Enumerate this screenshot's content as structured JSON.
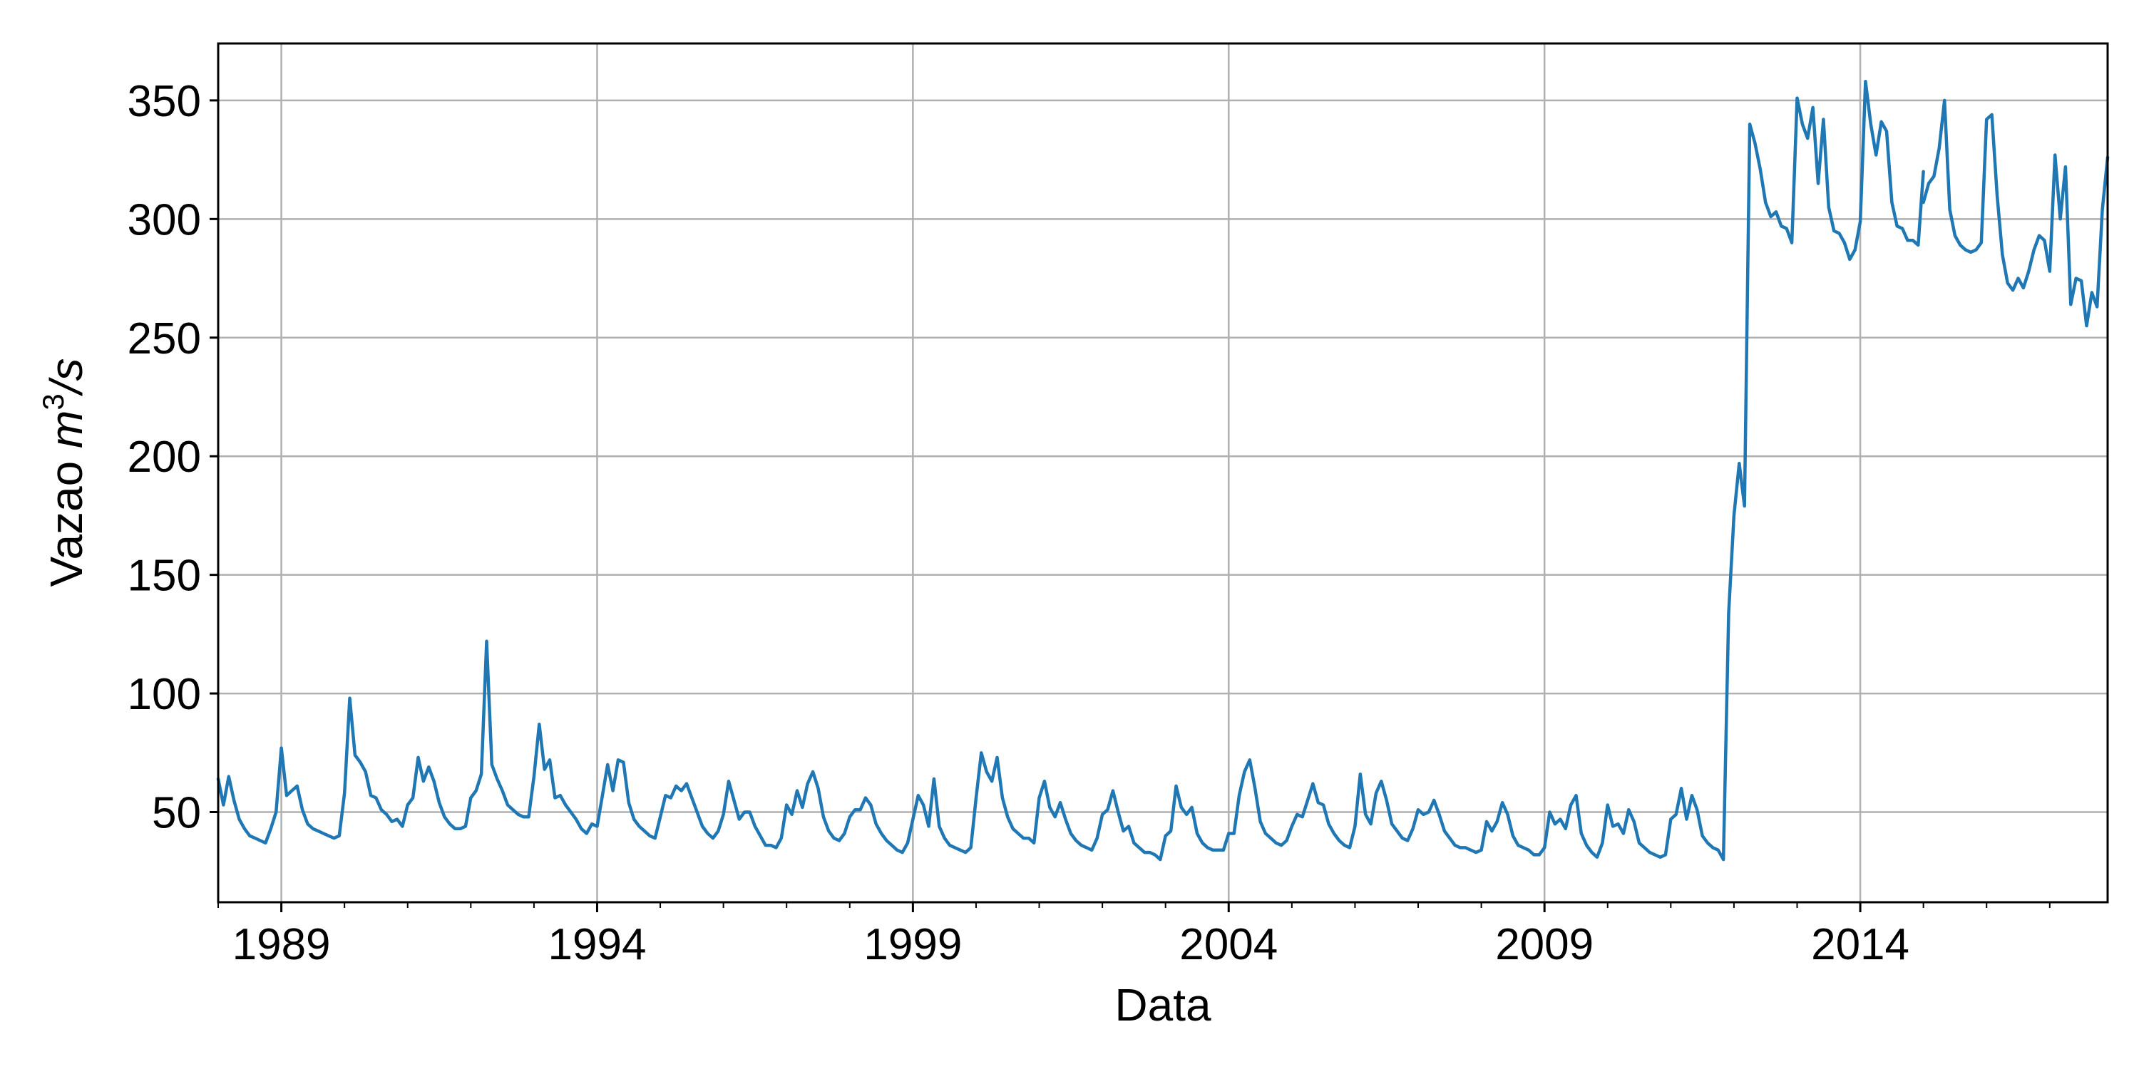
{
  "chart_data": {
    "type": "line",
    "title": "",
    "xlabel": "Data",
    "ylabel": "Vazao m³/s",
    "ylabel_parts": {
      "text": "Vazao ",
      "unit": "m",
      "sup": "3",
      "tail": "/s"
    },
    "x_range": [
      "1988-01",
      "2017-12"
    ],
    "ylim": [
      12,
      374
    ],
    "x_ticks": [
      "1989",
      "1994",
      "1999",
      "2004",
      "2009",
      "2014"
    ],
    "y_ticks": [
      50,
      100,
      150,
      200,
      250,
      300,
      350
    ],
    "grid": true,
    "line_color": "#1f77b4",
    "series": [
      {
        "segments": [
          {
            "start": "1988-01",
            "values": [
              64,
              53,
              65,
              55,
              47,
              43,
              40,
              39,
              38,
              37,
              43,
              50,
              77,
              57,
              59,
              61,
              51,
              45,
              43,
              42,
              41,
              40,
              39,
              40,
              58,
              98,
              74,
              71,
              67,
              57,
              56,
              51,
              49,
              46,
              47,
              44,
              53,
              56,
              73,
              63,
              69,
              63,
              54,
              48,
              45,
              43,
              43,
              44,
              56,
              59,
              66,
              122,
              70,
              64,
              59,
              53,
              51,
              49,
              48,
              48,
              65,
              87,
              68,
              72,
              56,
              57,
              53,
              50,
              47,
              43,
              41,
              45,
              44,
              57,
              70,
              59,
              72,
              71,
              54,
              47,
              44,
              42,
              40,
              39,
              48,
              57,
              56,
              61,
              59,
              62,
              56,
              50,
              44,
              41,
              39,
              42,
              49,
              63,
              55,
              47,
              50,
              50,
              44,
              40,
              36,
              36,
              35,
              39,
              53,
              49,
              59,
              52,
              62,
              67,
              60,
              48,
              42,
              39,
              38,
              41,
              48,
              51,
              51,
              56,
              53,
              45,
              41,
              38,
              36,
              34,
              33,
              37,
              47,
              57,
              53,
              44,
              64,
              44,
              39,
              36,
              35,
              34,
              33,
              35,
              56,
              75,
              67,
              63,
              73,
              56,
              48,
              43,
              41,
              39,
              39,
              37,
              56,
              63,
              52,
              48,
              54,
              47,
              41,
              38,
              36,
              35,
              34,
              39,
              49,
              51,
              59,
              50,
              42,
              44,
              37,
              35,
              33,
              33,
              32,
              30,
              40,
              42,
              61,
              52,
              49,
              52,
              41,
              37,
              35,
              34,
              34,
              34,
              41,
              41,
              57,
              67,
              72,
              60,
              46,
              41,
              39,
              37,
              36,
              38,
              44,
              49,
              48,
              55,
              62,
              54,
              53,
              45,
              41,
              38,
              36,
              35,
              44,
              66,
              49,
              45,
              58,
              63,
              55,
              45,
              42,
              39,
              38,
              43,
              51,
              49,
              50,
              55,
              49,
              42,
              39,
              36,
              35,
              35,
              34,
              33,
              34,
              46,
              42,
              46,
              54,
              49,
              40,
              36,
              35,
              34,
              32,
              32,
              35,
              50,
              45,
              47,
              43,
              53,
              57,
              41,
              36,
              33,
              31,
              37,
              53,
              44,
              45,
              41,
              51,
              46,
              37,
              35,
              33,
              32,
              31,
              32,
              47,
              49,
              60,
              47,
              57,
              51,
              40,
              37,
              35,
              34,
              30,
              134,
              175,
              197,
              179,
              340,
              332,
              321,
              307,
              301,
              303,
              297,
              296,
              290,
              351,
              340,
              334,
              347,
              315,
              342,
              305,
              295,
              294,
              290,
              283,
              287,
              299,
              358,
              340,
              327,
              341,
              337,
              307,
              297,
              296,
              291,
              291,
              289,
              320
            ]
          },
          {
            "start": "2015-01",
            "values": [
              307,
              315,
              318,
              330,
              350,
              304,
              293,
              289,
              287,
              286,
              287,
              290,
              342,
              344,
              310,
              285,
              273,
              270,
              275,
              271,
              278,
              287,
              293,
              291,
              278,
              327,
              300,
              322,
              264,
              275,
              274,
              255,
              269,
              263,
              304,
              326
            ]
          }
        ]
      }
    ]
  }
}
